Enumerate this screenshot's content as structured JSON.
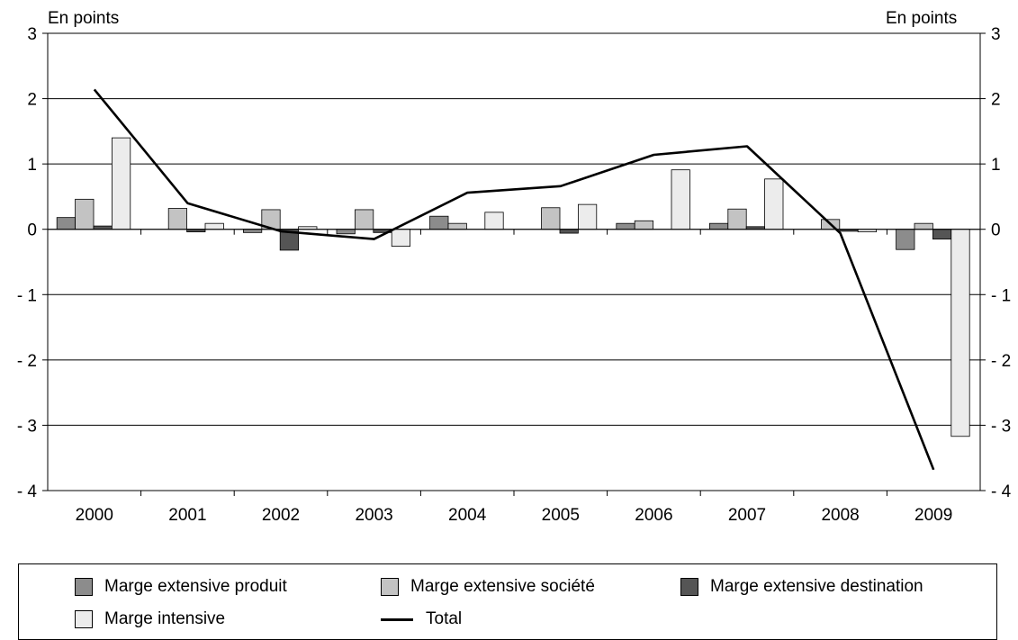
{
  "chart_data": {
    "type": "bar",
    "unit_left": "En points",
    "unit_right": "En points",
    "categories": [
      "2000",
      "2001",
      "2002",
      "2003",
      "2004",
      "2005",
      "2006",
      "2007",
      "2008",
      "2009"
    ],
    "ylim": [
      -4,
      3
    ],
    "yticks": [
      3,
      2,
      1,
      0,
      -1,
      -2,
      -3,
      -4
    ],
    "ytick_labels": [
      "3",
      "2",
      "1",
      "0",
      "- 1",
      "- 2",
      "- 3",
      "- 4"
    ],
    "grid": true,
    "legend_position": "bottom",
    "series": [
      {
        "name": "Marge extensive produit",
        "type": "bar",
        "color": "#8c8c8c",
        "values": [
          0.18,
          0.0,
          -0.05,
          -0.07,
          0.2,
          0.0,
          0.09,
          0.09,
          0.0,
          -0.31
        ]
      },
      {
        "name": "Marge extensive société",
        "type": "bar",
        "color": "#c3c3c3",
        "values": [
          0.46,
          0.32,
          0.3,
          0.3,
          0.09,
          0.33,
          0.13,
          0.31,
          0.15,
          0.09
        ]
      },
      {
        "name": "Marge extensive destination",
        "type": "bar",
        "color": "#555555",
        "values": [
          0.05,
          -0.04,
          -0.32,
          -0.05,
          0.0,
          -0.06,
          0.0,
          0.04,
          -0.03,
          -0.15
        ]
      },
      {
        "name": "Marge intensive",
        "type": "bar",
        "color": "#ececec",
        "values": [
          1.4,
          0.09,
          0.04,
          -0.26,
          0.26,
          0.38,
          0.91,
          0.77,
          -0.04,
          -3.17
        ]
      },
      {
        "name": "Total",
        "type": "line",
        "color": "#000000",
        "values": [
          2.14,
          0.4,
          -0.03,
          -0.15,
          0.56,
          0.66,
          1.14,
          1.27,
          -0.06,
          -3.68
        ]
      }
    ]
  },
  "legend": {
    "items": [
      {
        "label": "Marge extensive produit",
        "kind": "box",
        "color": "#8c8c8c"
      },
      {
        "label": "Marge extensive société",
        "kind": "box",
        "color": "#c3c3c3"
      },
      {
        "label": "Marge extensive destination",
        "kind": "box",
        "color": "#555555"
      },
      {
        "label": "Marge intensive",
        "kind": "box",
        "color": "#ececec"
      },
      {
        "label": "Total",
        "kind": "line",
        "color": "#000000"
      }
    ]
  }
}
